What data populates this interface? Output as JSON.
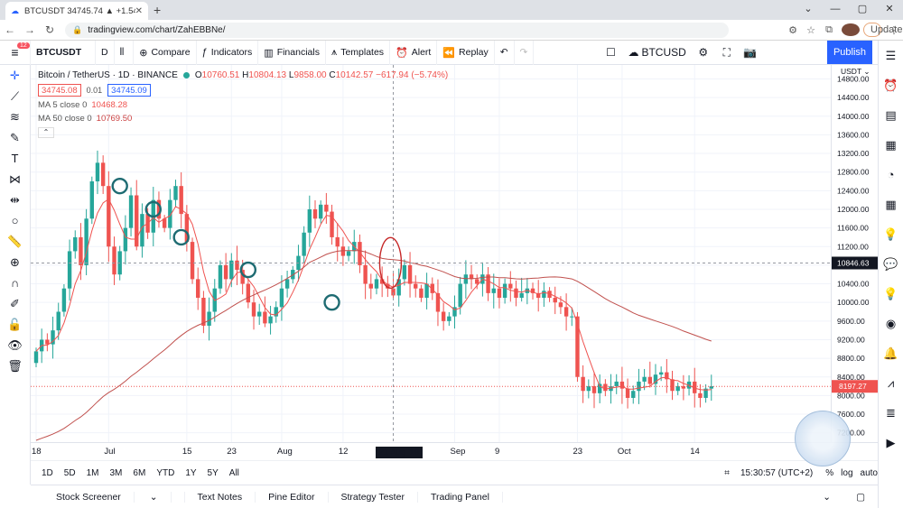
{
  "browser": {
    "tab_title": "BTCUSDT 34745.74 ▲ +1.54% BT",
    "url": "tradingview.com/chart/ZahEBBNe/",
    "update_label": "Update"
  },
  "toolbar": {
    "badge": "12",
    "symbol": "BTCUSDT",
    "interval": "D",
    "compare": "Compare",
    "indicators": "Indicators",
    "financials": "Financials",
    "templates": "Templates",
    "alert": "Alert",
    "replay": "Replay",
    "pair": "BTCUSD",
    "publish": "Publish"
  },
  "legend": {
    "title": "Bitcoin / TetherUS · 1D · BINANCE",
    "o_label": "O",
    "o": "10760.51",
    "h_label": "H",
    "h": "10804.13",
    "l_label": "L",
    "l": "9858.00",
    "c_label": "C",
    "c": "10142.57",
    "change": "−617.94 (−5.74%)",
    "bid": "34745.08",
    "spread": "0.01",
    "ask": "34745.09",
    "ma5_label": "MA 5 close 0",
    "ma5_value": "10468.28",
    "ma50_label": "MA 50 close 0",
    "ma50_value": "10769.50"
  },
  "price_axis": {
    "currency": "USDT",
    "crosshair_price": "10846.63",
    "last_price": "8197.27"
  },
  "x_axis": {
    "crosshair_date": "21 Aug '19"
  },
  "ranges": [
    "1D",
    "5D",
    "1M",
    "3M",
    "6M",
    "YTD",
    "1Y",
    "5Y",
    "All"
  ],
  "clock": "15:30:57 (UTC+2)",
  "scale_opts": [
    "%",
    "log",
    "auto"
  ],
  "bottom_tabs": [
    "Stock Screener",
    "Text Notes",
    "Pine Editor",
    "Strategy Tester",
    "Trading Panel"
  ],
  "colors": {
    "up": "#26a69a",
    "down": "#ef5350",
    "ma5": "#ef5350",
    "ma50": "#c0504d",
    "accent": "#2962ff"
  },
  "chart_data": {
    "type": "candlestick",
    "ylim": [
      7000,
      15100
    ],
    "y_ticks": [
      7200,
      7600,
      8000,
      8400,
      8800,
      9200,
      9600,
      10000,
      10400,
      10800,
      11200,
      11600,
      12000,
      12400,
      12800,
      13200,
      13600,
      14000,
      14400,
      14800
    ],
    "x_labels": [
      {
        "label": "18",
        "i": 0
      },
      {
        "label": "Jul",
        "i": 13
      },
      {
        "label": "15",
        "i": 27
      },
      {
        "label": "23",
        "i": 35
      },
      {
        "label": "Aug",
        "i": 44
      },
      {
        "label": "12",
        "i": 55
      },
      {
        "label": "Sep",
        "i": 75
      },
      {
        "label": "9",
        "i": 83
      },
      {
        "label": "23",
        "i": 97
      },
      {
        "label": "Oct",
        "i": 105
      },
      {
        "label": "14",
        "i": 118
      }
    ],
    "crosshair_index": 64,
    "closes": [
      8950,
      9200,
      9100,
      9400,
      9800,
      10300,
      11100,
      11400,
      10800,
      11800,
      12600,
      13000,
      12500,
      11200,
      10600,
      11100,
      11600,
      12300,
      11200,
      11900,
      11500,
      12200,
      11800,
      11600,
      12200,
      12500,
      11900,
      11300,
      10500,
      10100,
      9500,
      9800,
      10300,
      10800,
      10500,
      10900,
      10700,
      10400,
      10000,
      9700,
      9800,
      9550,
      9700,
      9900,
      10300,
      10500,
      10700,
      11000,
      11500,
      12000,
      11800,
      12100,
      11950,
      11400,
      11200,
      11000,
      11100,
      11300,
      10800,
      10400,
      10300,
      10500,
      10400,
      10300,
      10150,
      10500,
      10800,
      10400,
      10300,
      10100,
      10400,
      10200,
      9800,
      9600,
      9700,
      9900,
      10400,
      10600,
      10500,
      10400,
      10600,
      10200,
      10300,
      10100,
      10400,
      10300,
      10100,
      10200,
      10300,
      10200,
      10100,
      10250,
      10100,
      10000,
      9900,
      9700,
      9700,
      8400,
      8100,
      8200,
      8050,
      8250,
      8100,
      8200,
      8300,
      8150,
      7950,
      8100,
      8300,
      8400,
      8250,
      8450,
      8500,
      8350,
      8100,
      8200,
      8150,
      8300,
      8050,
      7950,
      8150,
      8200
    ]
  }
}
